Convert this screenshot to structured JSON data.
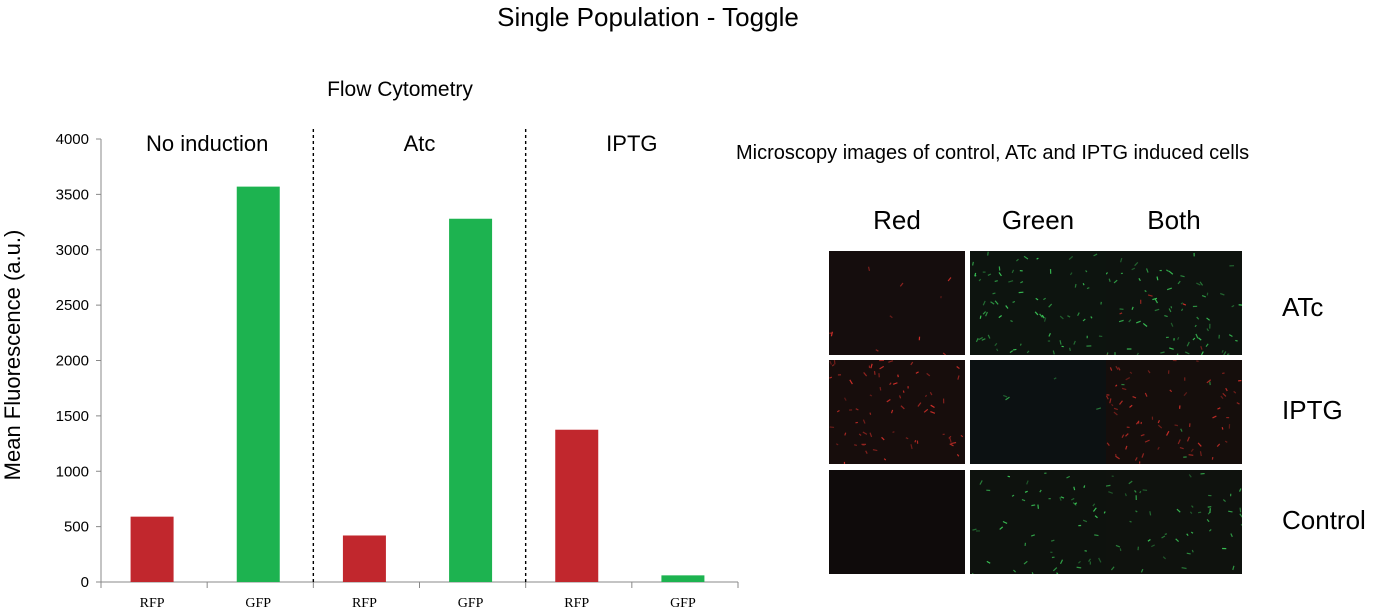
{
  "title": "Single Population - Toggle",
  "chart_data": {
    "type": "bar",
    "title": "Flow Cytometry",
    "ylabel": "Mean Fluorescence (a.u.)",
    "xlabel": "",
    "ylim": [
      0,
      4000
    ],
    "yticks": [
      0,
      500,
      1000,
      1500,
      2000,
      2500,
      3000,
      3500,
      4000
    ],
    "groups": [
      "No induction",
      "Atc",
      "IPTG"
    ],
    "categories": [
      "RFP",
      "GFP",
      "RFP",
      "GFP",
      "RFP",
      "GFP"
    ],
    "values": [
      590,
      3570,
      420,
      3280,
      1375,
      60
    ],
    "bar_colors": [
      "#c1272d",
      "#1db350",
      "#c1272d",
      "#1db350",
      "#c1272d",
      "#1db350"
    ],
    "group_separators": "dashed",
    "grid": false,
    "legend": "none"
  },
  "microscopy": {
    "title": "Microscopy images of control, ATc and IPTG induced cells",
    "columns": [
      "Red",
      "Green",
      "Both"
    ],
    "rows": [
      "ATc",
      "IPTG",
      "Control"
    ]
  },
  "colors": {
    "rfp": "#c1272d",
    "gfp": "#1db350",
    "image_background": "#0b0b0b"
  }
}
